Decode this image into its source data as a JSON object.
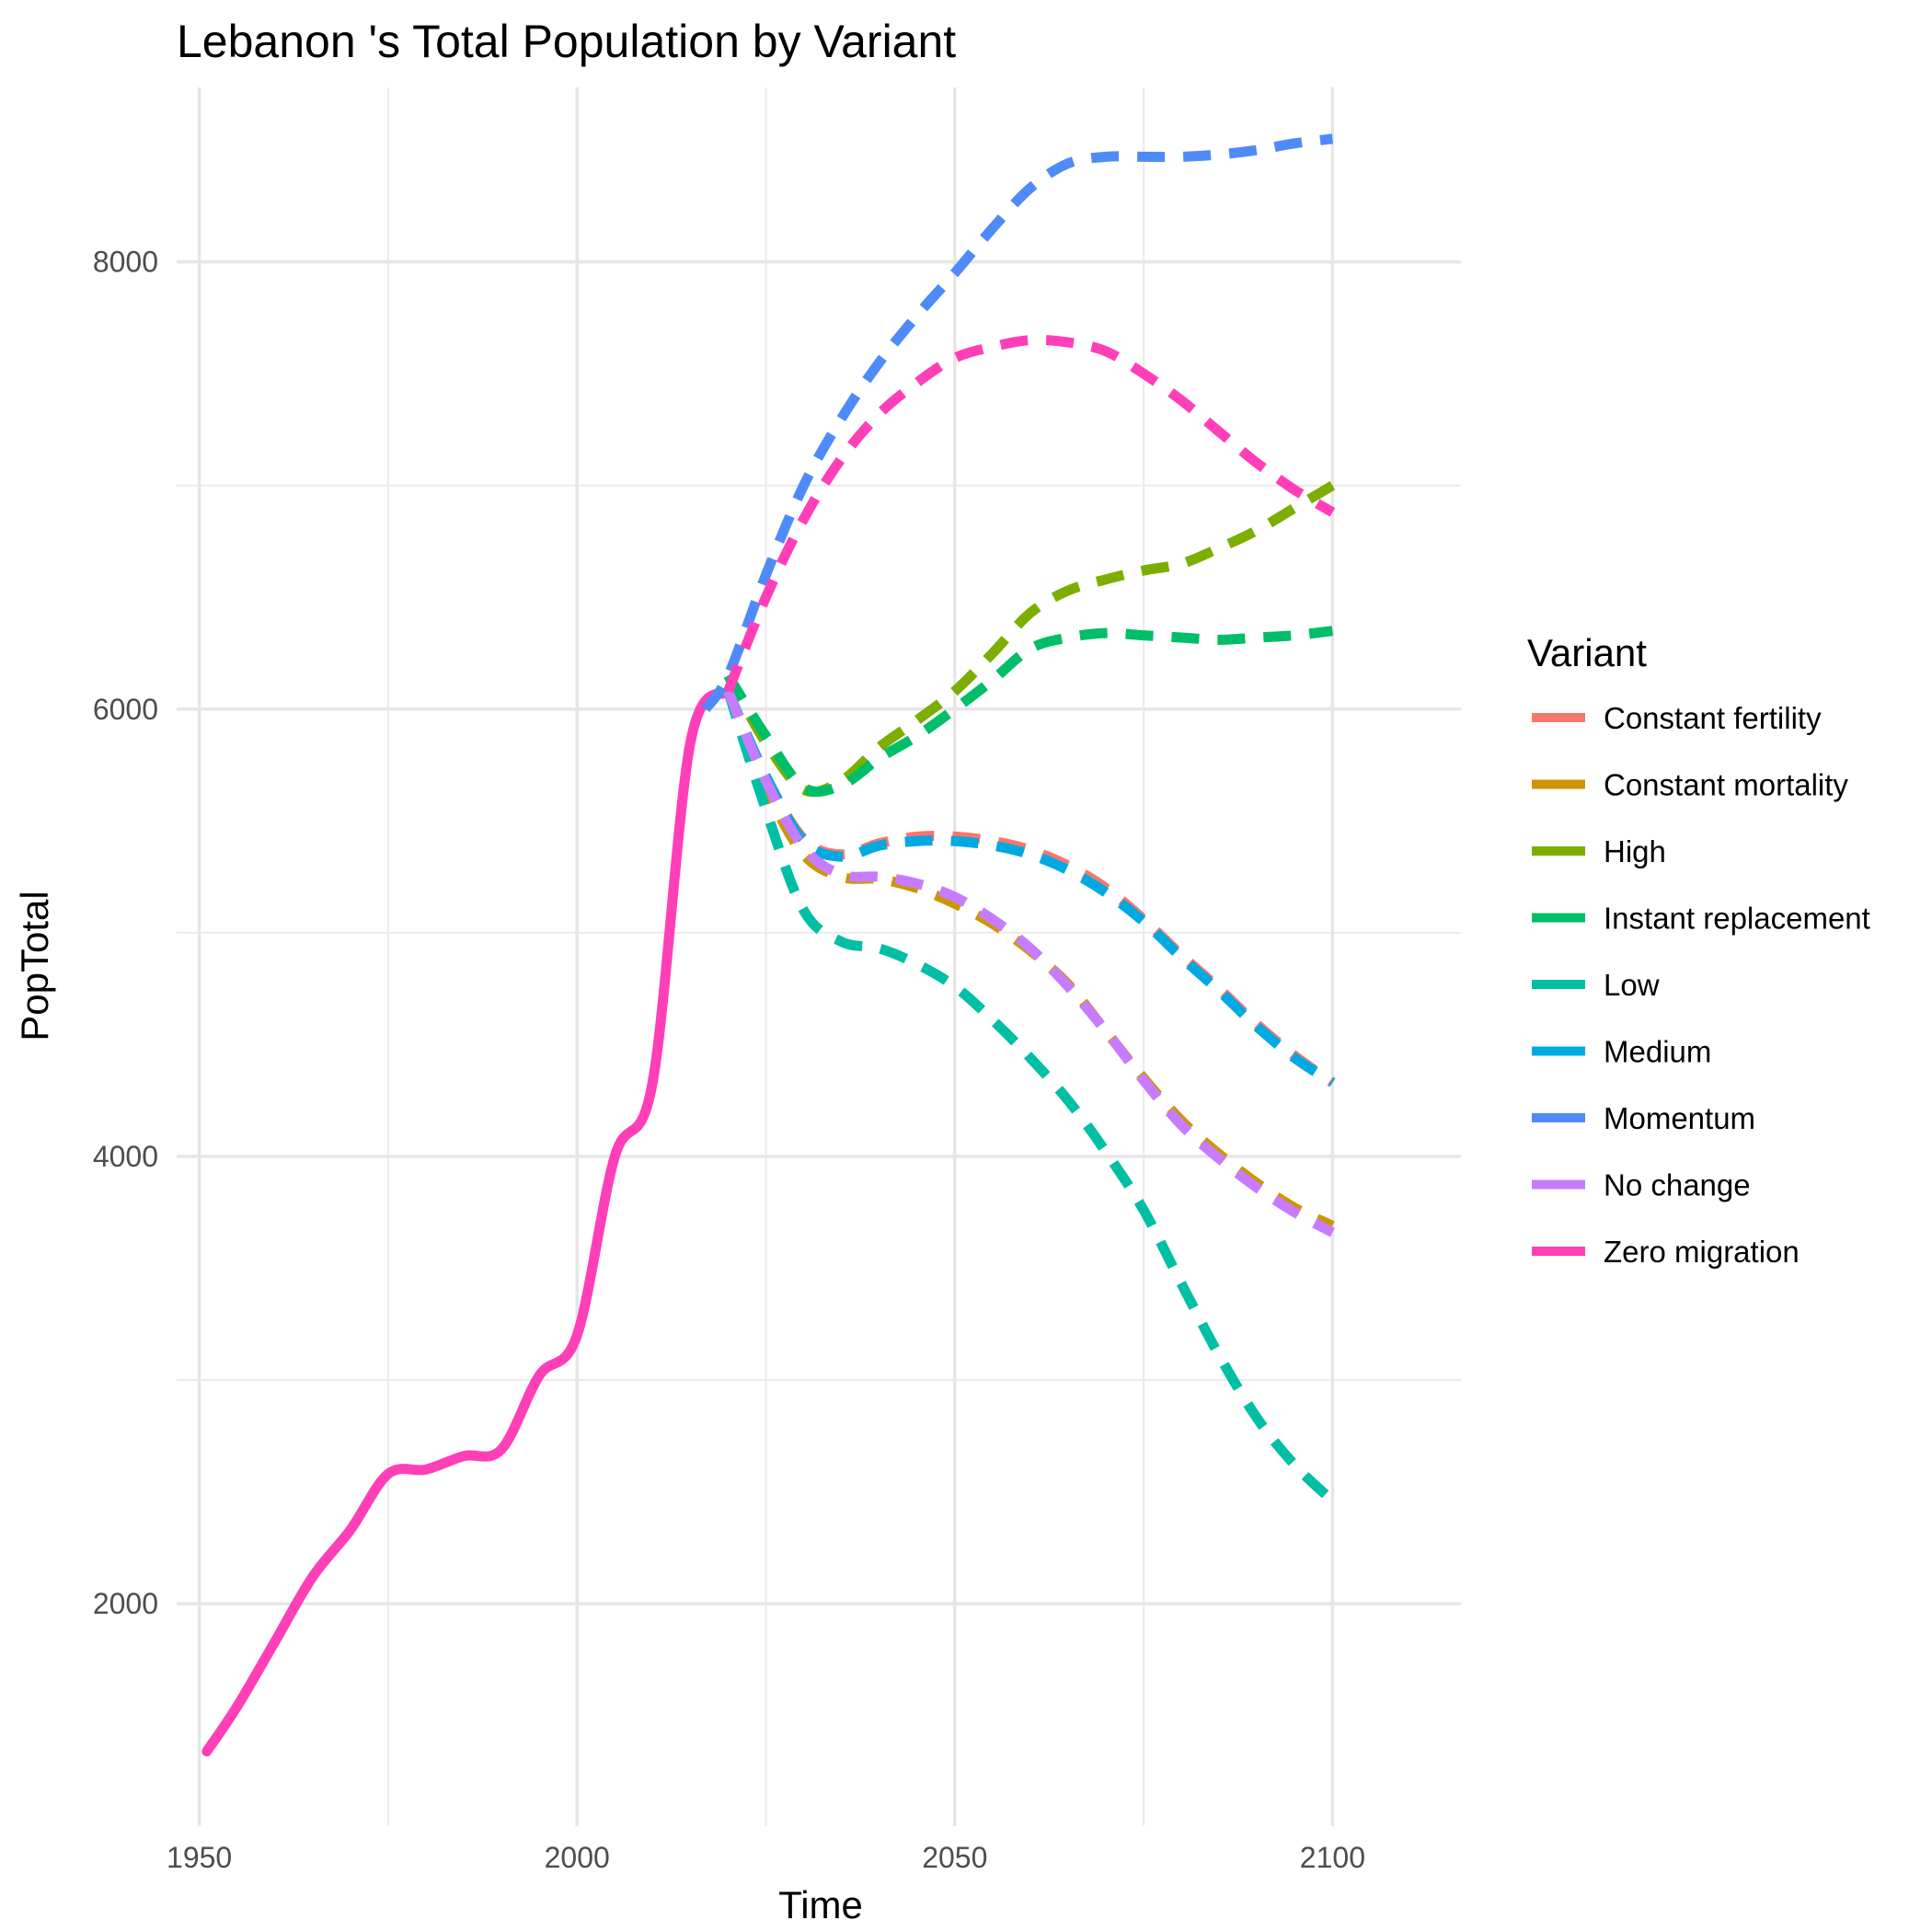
{
  "chart_data": {
    "type": "line",
    "title": "Lebanon 's Total Population by Variant",
    "xlabel": "Time",
    "ylabel": "PopTotal",
    "xlim": [
      1947,
      2117
    ],
    "ylim": [
      1005,
      8780
    ],
    "x_ticks": [
      1950,
      2000,
      2050,
      2100
    ],
    "x_tick_labels": [
      "1950",
      "2000",
      "2050",
      "2100"
    ],
    "y_ticks": [
      2000,
      4000,
      6000,
      8000
    ],
    "y_tick_labels": [
      "2000",
      "4000",
      "6000",
      "8000"
    ],
    "y_minor_ticks": [
      3000,
      5000,
      7000
    ],
    "x_minor_ticks": [
      1975,
      2025,
      2075
    ],
    "grid": true,
    "legend_title": "Variant",
    "legend_position": "right",
    "historical": {
      "name": "Zero migration",
      "color": "#FF3FB8",
      "x": [
        1951,
        1955,
        1960,
        1965,
        1970,
        1975,
        1980,
        1985,
        1990,
        1995,
        2000,
        2005,
        2010,
        2015,
        2020
      ],
      "y": [
        1340,
        1540,
        1830,
        2120,
        2330,
        2580,
        2600,
        2660,
        2690,
        3020,
        3200,
        4000,
        4330,
        5850,
        6080
      ]
    },
    "series": [
      {
        "name": "Constant fertility",
        "color": "#F8766D",
        "x": [
          2020,
          2025,
          2030,
          2035,
          2040,
          2045,
          2050,
          2055,
          2060,
          2065,
          2070,
          2075,
          2080,
          2085,
          2090,
          2095,
          2100
        ],
        "y": [
          6080,
          5700,
          5420,
          5350,
          5400,
          5430,
          5430,
          5410,
          5370,
          5300,
          5200,
          5060,
          4900,
          4750,
          4590,
          4450,
          4330
        ]
      },
      {
        "name": "Constant mortality",
        "color": "#CD9600",
        "x": [
          2020,
          2025,
          2030,
          2035,
          2040,
          2045,
          2050,
          2055,
          2060,
          2065,
          2070,
          2075,
          2080,
          2085,
          2090,
          2095,
          2100
        ],
        "y": [
          6080,
          5650,
          5350,
          5250,
          5240,
          5200,
          5130,
          5040,
          4920,
          4770,
          4560,
          4350,
          4160,
          4010,
          3880,
          3770,
          3690
        ]
      },
      {
        "name": "High",
        "color": "#7CAE00",
        "x": [
          2020,
          2025,
          2030,
          2035,
          2040,
          2045,
          2050,
          2055,
          2060,
          2065,
          2070,
          2075,
          2080,
          2085,
          2090,
          2095,
          2100
        ],
        "y": [
          6150,
          5850,
          5640,
          5680,
          5830,
          5950,
          6080,
          6250,
          6430,
          6530,
          6580,
          6620,
          6650,
          6720,
          6800,
          6900,
          7000
        ]
      },
      {
        "name": "Instant replacement",
        "color": "#00BE67",
        "x": [
          2020,
          2025,
          2030,
          2035,
          2040,
          2045,
          2050,
          2055,
          2060,
          2065,
          2070,
          2075,
          2080,
          2085,
          2090,
          2095,
          2100
        ],
        "y": [
          6150,
          5880,
          5650,
          5660,
          5780,
          5880,
          6000,
          6130,
          6270,
          6320,
          6340,
          6330,
          6320,
          6310,
          6320,
          6330,
          6350
        ]
      },
      {
        "name": "Low",
        "color": "#00BFA4",
        "x": [
          2020,
          2025,
          2030,
          2035,
          2040,
          2045,
          2050,
          2055,
          2060,
          2065,
          2070,
          2075,
          2080,
          2085,
          2090,
          2095,
          2100
        ],
        "y": [
          6080,
          5550,
          5100,
          4960,
          4930,
          4860,
          4760,
          4610,
          4440,
          4250,
          4020,
          3760,
          3430,
          3110,
          2830,
          2620,
          2460
        ]
      },
      {
        "name": "Medium",
        "color": "#00A9E2",
        "x": [
          2020,
          2025,
          2030,
          2035,
          2040,
          2045,
          2050,
          2055,
          2060,
          2065,
          2070,
          2075,
          2080,
          2085,
          2090,
          2095,
          2100
        ],
        "y": [
          6080,
          5700,
          5410,
          5340,
          5390,
          5410,
          5410,
          5390,
          5350,
          5280,
          5180,
          5050,
          4890,
          4740,
          4580,
          4440,
          4330
        ]
      },
      {
        "name": "Momentum",
        "color": "#4F8BF8",
        "x": [
          2017,
          2020,
          2025,
          2030,
          2035,
          2040,
          2045,
          2050,
          2055,
          2060,
          2065,
          2070,
          2075,
          2080,
          2085,
          2090,
          2095,
          2100
        ],
        "y": [
          6000,
          6150,
          6600,
          7000,
          7300,
          7550,
          7760,
          7950,
          8150,
          8330,
          8440,
          8470,
          8470,
          8470,
          8480,
          8500,
          8530,
          8550
        ]
      },
      {
        "name": "No change",
        "color": "#C77CFF",
        "x": [
          2020,
          2025,
          2030,
          2035,
          2040,
          2045,
          2050,
          2055,
          2060,
          2065,
          2070,
          2075,
          2080,
          2085,
          2090,
          2095,
          2100
        ],
        "y": [
          6080,
          5680,
          5380,
          5260,
          5250,
          5220,
          5160,
          5060,
          4930,
          4760,
          4560,
          4340,
          4140,
          3990,
          3860,
          3750,
          3660
        ]
      },
      {
        "name": "Zero migration",
        "color": "#FF3FB8",
        "x": [
          2020,
          2025,
          2030,
          2035,
          2040,
          2045,
          2050,
          2055,
          2060,
          2065,
          2070,
          2075,
          2080,
          2085,
          2090,
          2095,
          2100
        ],
        "y": [
          6080,
          6500,
          6850,
          7120,
          7320,
          7460,
          7570,
          7620,
          7650,
          7640,
          7600,
          7500,
          7380,
          7240,
          7100,
          6980,
          6880
        ]
      }
    ]
  }
}
